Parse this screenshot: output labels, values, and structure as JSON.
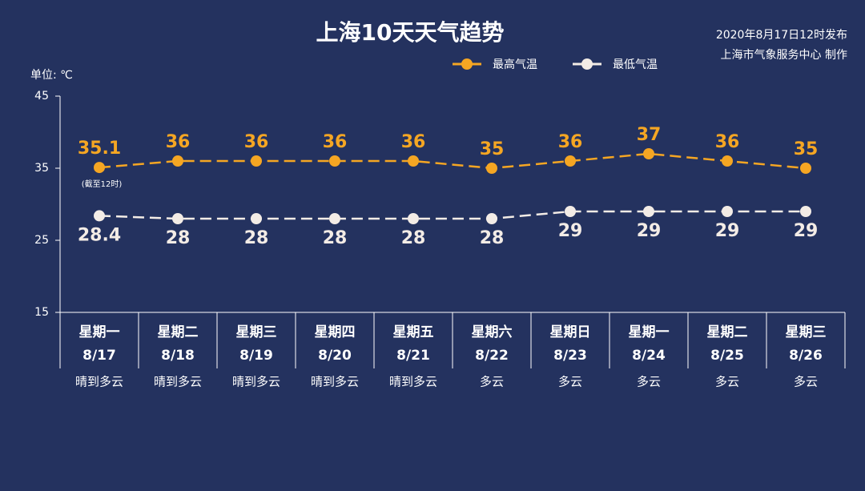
{
  "chart_data": {
    "type": "line",
    "title": "上海10天天气趋势",
    "publish_time": "2020年8月17日12时发布",
    "publisher": "上海市气象服务中心 制作",
    "y_label": "单位: ℃",
    "annotation": "(截至12时)",
    "weekdays": [
      "星期一",
      "星期二",
      "星期三",
      "星期四",
      "星期五",
      "星期六",
      "星期日",
      "星期一",
      "星期二",
      "星期三"
    ],
    "categories": [
      "8/17",
      "8/18",
      "8/19",
      "8/20",
      "8/21",
      "8/22",
      "8/23",
      "8/24",
      "8/25",
      "8/26"
    ],
    "weather": [
      "晴到多云",
      "晴到多云",
      "晴到多云",
      "晴到多云",
      "晴到多云",
      "多云",
      "多云",
      "多云",
      "多云",
      "多云"
    ],
    "ylim": [
      15,
      45
    ],
    "yticks": [
      15,
      25,
      35,
      45
    ],
    "series": [
      {
        "name": "最高气温",
        "color": "#f5a623",
        "values": [
          35.1,
          36,
          36,
          36,
          36,
          35,
          36,
          37,
          36,
          35
        ]
      },
      {
        "name": "最低气温",
        "color": "#f3ece6",
        "values": [
          28.4,
          28,
          28,
          28,
          28,
          28,
          29,
          29,
          29,
          29
        ]
      }
    ]
  }
}
